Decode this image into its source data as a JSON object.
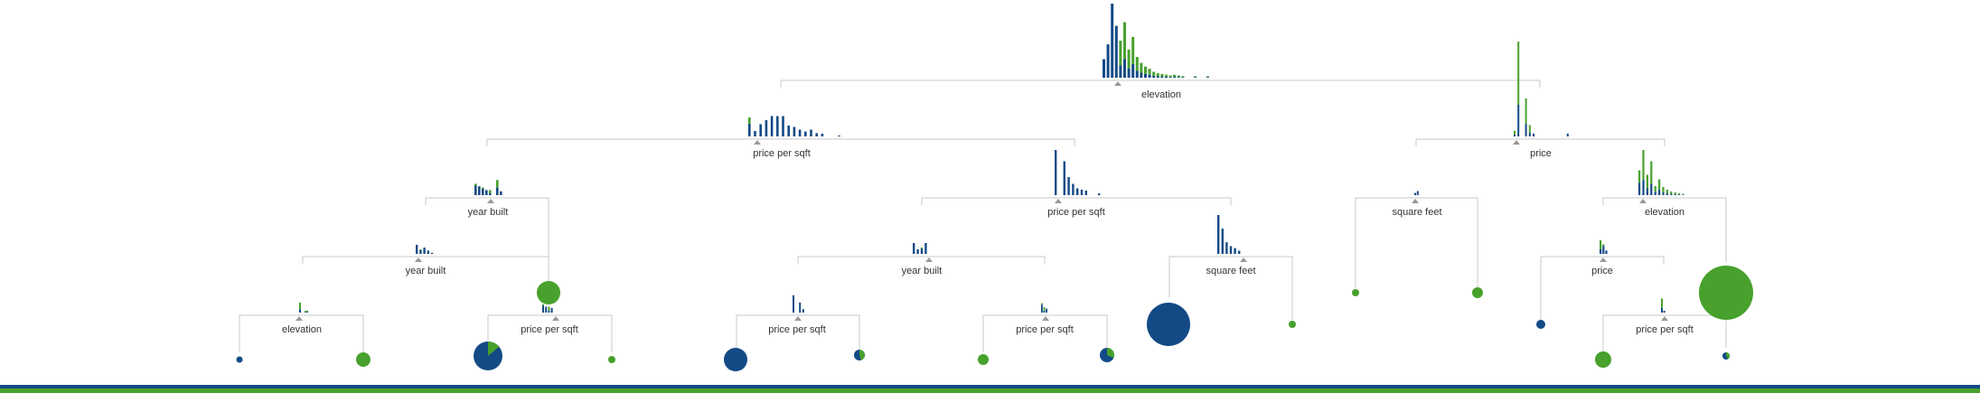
{
  "colors": {
    "blue": "#134a86",
    "green": "#47a12c",
    "line": "#c8c8c8",
    "marker": "#999999"
  },
  "nodes": [
    {
      "id": "root",
      "label": "elevation",
      "hist": [
        [
          6,
          0.25
        ],
        [
          6,
          0.45
        ],
        [
          6,
          1.0
        ],
        [
          6,
          0.7
        ],
        [
          2,
          0.5
        ],
        [
          2,
          0.75
        ],
        [
          2,
          0.38
        ],
        [
          2,
          0.55
        ],
        [
          2,
          0.28
        ],
        [
          2,
          0.2
        ],
        [
          2,
          0.15
        ],
        [
          2,
          0.12
        ],
        [
          2,
          0.08
        ],
        [
          2,
          0.06
        ],
        [
          2,
          0.05
        ],
        [
          2,
          0.04
        ],
        [
          2,
          0.03
        ],
        [
          2,
          0.04
        ],
        [
          2,
          0.03
        ],
        [
          2,
          0.02
        ],
        [
          0,
          0
        ],
        [
          0,
          0
        ],
        [
          2,
          0.02
        ],
        [
          0,
          0
        ],
        [
          0,
          0
        ],
        [
          2,
          0.02
        ]
      ]
    },
    {
      "id": "n-pps1",
      "label": "price per sqft",
      "hist": [
        [
          4,
          0.7
        ],
        [
          6,
          0.2
        ],
        [
          6,
          0.45
        ],
        [
          6,
          0.6
        ],
        [
          6,
          0.75
        ],
        [
          6,
          0.75
        ],
        [
          6,
          0.75
        ],
        [
          6,
          0.4
        ],
        [
          6,
          0.35
        ],
        [
          6,
          0.25
        ],
        [
          6,
          0.18
        ],
        [
          6,
          0.25
        ],
        [
          6,
          0.12
        ],
        [
          6,
          0.1
        ],
        [
          0,
          0
        ],
        [
          0,
          0
        ],
        [
          6,
          0.03
        ]
      ]
    },
    {
      "id": "n-price1",
      "label": "price",
      "hist": [
        [
          2,
          0.06
        ],
        [
          2,
          1.0
        ],
        [
          0,
          0
        ],
        [
          2,
          0.4
        ],
        [
          2,
          0.12
        ],
        [
          6,
          0.03
        ],
        [
          0,
          0
        ],
        [
          0,
          0
        ],
        [
          0,
          0
        ],
        [
          0,
          0
        ],
        [
          0,
          0
        ],
        [
          0,
          0
        ],
        [
          0,
          0
        ],
        [
          0,
          0
        ],
        [
          6,
          0.03
        ]
      ]
    },
    {
      "id": "n-yb1",
      "label": "year built",
      "hist": [
        [
          5,
          0.45
        ],
        [
          6,
          0.35
        ],
        [
          5,
          0.3
        ],
        [
          6,
          0.2
        ],
        [
          2,
          0.2
        ],
        [
          0,
          0
        ],
        [
          3,
          0.6
        ],
        [
          6,
          0.15
        ]
      ]
    },
    {
      "id": "n-pps2",
      "label": "price per sqft",
      "hist": [
        [
          6,
          1.0
        ],
        [
          0,
          0
        ],
        [
          6,
          0.75
        ],
        [
          6,
          0.4
        ],
        [
          6,
          0.25
        ],
        [
          6,
          0.15
        ],
        [
          6,
          0.12
        ],
        [
          6,
          0.1
        ],
        [
          0,
          0
        ],
        [
          0,
          0
        ],
        [
          6,
          0.04
        ]
      ]
    },
    {
      "id": "n-sqft1",
      "label": "square feet",
      "hist": [
        [
          6,
          0.08
        ],
        [
          6,
          0.15
        ]
      ]
    },
    {
      "id": "n-elev2",
      "label": "elevation",
      "hist": [
        [
          3,
          0.55
        ],
        [
          2,
          1.0
        ],
        [
          2,
          0.45
        ],
        [
          2,
          0.75
        ],
        [
          2,
          0.2
        ],
        [
          2,
          0.35
        ],
        [
          2,
          0.18
        ],
        [
          2,
          0.12
        ],
        [
          2,
          0.08
        ],
        [
          2,
          0.06
        ],
        [
          2,
          0.04
        ],
        [
          2,
          0.03
        ]
      ]
    },
    {
      "id": "n-yb2",
      "label": "year built",
      "hist": [
        [
          6,
          0.5
        ],
        [
          5,
          0.25
        ],
        [
          6,
          0.35
        ],
        [
          6,
          0.18
        ],
        [
          6,
          0.06
        ]
      ]
    },
    {
      "id": "n-yb3",
      "label": "year built",
      "hist": [
        [
          6,
          0.6
        ],
        [
          6,
          0.25
        ],
        [
          5,
          0.35
        ],
        [
          6,
          0.6
        ]
      ]
    },
    {
      "id": "n-sqft2",
      "label": "square feet",
      "hist": [
        [
          6,
          1.0
        ],
        [
          6,
          0.65
        ],
        [
          6,
          0.3
        ],
        [
          6,
          0.2
        ],
        [
          6,
          0.15
        ],
        [
          6,
          0.08
        ]
      ]
    },
    {
      "id": "n-price2",
      "label": "price",
      "hist": [
        [
          2,
          0.5
        ],
        [
          5,
          0.35
        ],
        [
          6,
          0.12
        ]
      ]
    },
    {
      "id": "n-elev3",
      "label": "elevation",
      "hist": [
        [
          2,
          0.5
        ],
        [
          0,
          0
        ],
        [
          0,
          0
        ],
        [
          2,
          0.08
        ],
        [
          2,
          0.1
        ]
      ]
    },
    {
      "id": "n-pps3",
      "label": "price per sqft",
      "hist": [
        [
          5,
          0.35
        ],
        [
          6,
          0.25
        ],
        [
          2,
          0.25
        ],
        [
          6,
          0.2
        ]
      ]
    },
    {
      "id": "n-pps4",
      "label": "price per sqft",
      "hist": [
        [
          6,
          0.6
        ],
        [
          0,
          0
        ],
        [
          6,
          0.35
        ],
        [
          6,
          0.12
        ]
      ]
    },
    {
      "id": "n-pps5",
      "label": "price per sqft",
      "hist": [
        [
          5,
          0.35
        ],
        [
          2,
          0.2
        ],
        [
          6,
          0.15
        ]
      ]
    },
    {
      "id": "n-pps6",
      "label": "price per sqft",
      "hist": [
        [
          2,
          0.6
        ],
        [
          6,
          0.08
        ]
      ]
    }
  ],
  "leaves": [
    {
      "id": "leaf-a",
      "share_blue": 0.0,
      "size": 0.16
    },
    {
      "id": "leaf-b",
      "share_blue": 1.0,
      "size": 0.05
    },
    {
      "id": "leaf-c",
      "share_blue": 1.0,
      "size": 0.6
    },
    {
      "id": "leaf-d",
      "share_blue": 0.0,
      "size": 0.08
    },
    {
      "id": "leaf-e",
      "share_blue": 0.0,
      "size": 0.12
    },
    {
      "id": "leaf-f",
      "share_blue": 0.0,
      "size": 1.0
    },
    {
      "id": "leaf-g",
      "share_blue": 0.0,
      "size": 0.11
    },
    {
      "id": "leaf-h",
      "share_blue": 1.0,
      "size": 0.08
    },
    {
      "id": "leaf-i",
      "share_blue": 0.0,
      "size": 0.26
    },
    {
      "id": "leaf-j",
      "share_blue": 0.86,
      "size": 0.5
    },
    {
      "id": "leaf-k",
      "share_blue": 0.0,
      "size": 0.11
    },
    {
      "id": "leaf-l",
      "share_blue": 1.0,
      "size": 0.36
    },
    {
      "id": "leaf-m",
      "share_blue": 0.55,
      "size": 0.15
    },
    {
      "id": "leaf-n",
      "share_blue": 0.0,
      "size": 0.14
    },
    {
      "id": "leaf-o",
      "share_blue": 0.68,
      "size": 0.2
    },
    {
      "id": "leaf-p",
      "share_blue": 0.0,
      "size": 0.3
    },
    {
      "id": "leaf-q",
      "share_blue": 0.6,
      "size": 0.09
    }
  ]
}
